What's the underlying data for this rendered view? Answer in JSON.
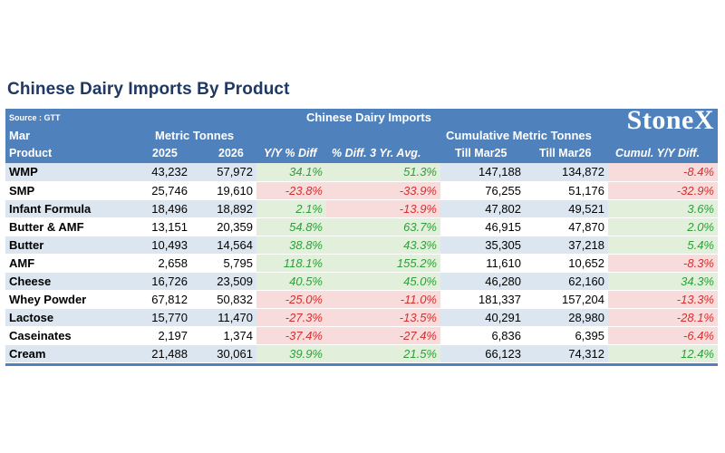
{
  "title": "Chinese Dairy Imports By Product",
  "header": {
    "source": "Source : GTT",
    "center_title": "Chinese Dairy Imports",
    "logo": "StoneX",
    "row2": {
      "period": "Mar",
      "metric": "Metric Tonnes",
      "cumulative": "Cumulative Metric Tonnes"
    },
    "columns": [
      "Product",
      "2025",
      "2026",
      "Y/Y % Diff",
      "% Diff. 3 Yr. Avg.",
      "Till Mar25",
      "Till Mar26",
      "Cumul. Y/Y Diff."
    ]
  },
  "colors": {
    "header_blue": "#4f81bd",
    "title_navy": "#1f3864",
    "positive_text": "#2e9e3a",
    "negative_text": "#d32f2f",
    "positive_fill": "#e2efda",
    "negative_fill": "#f8dcdc",
    "row_band": "#dce6f1"
  },
  "chart_data": {
    "type": "table",
    "title": "Chinese Dairy Imports By Product",
    "columns": [
      "Product",
      "2025",
      "2026",
      "Y/Y % Diff",
      "% Diff. 3 Yr. Avg.",
      "Till Mar25",
      "Till Mar26",
      "Cumul. Y/Y Diff."
    ],
    "rows": [
      {
        "product": "WMP",
        "y2025": "43,232",
        "y2026": "57,972",
        "yoy": "34.1%",
        "avg3": "51.3%",
        "till25": "147,188",
        "till26": "134,872",
        "cumul": "-8.4%"
      },
      {
        "product": "SMP",
        "y2025": "25,746",
        "y2026": "19,610",
        "yoy": "-23.8%",
        "avg3": "-33.9%",
        "till25": "76,255",
        "till26": "51,176",
        "cumul": "-32.9%"
      },
      {
        "product": "Infant Formula",
        "y2025": "18,496",
        "y2026": "18,892",
        "yoy": "2.1%",
        "avg3": "-13.9%",
        "till25": "47,802",
        "till26": "49,521",
        "cumul": "3.6%"
      },
      {
        "product": "Butter & AMF",
        "y2025": "13,151",
        "y2026": "20,359",
        "yoy": "54.8%",
        "avg3": "63.7%",
        "till25": "46,915",
        "till26": "47,870",
        "cumul": "2.0%"
      },
      {
        "product": "Butter",
        "y2025": "10,493",
        "y2026": "14,564",
        "yoy": "38.8%",
        "avg3": "43.3%",
        "till25": "35,305",
        "till26": "37,218",
        "cumul": "5.4%"
      },
      {
        "product": "AMF",
        "y2025": "2,658",
        "y2026": "5,795",
        "yoy": "118.1%",
        "avg3": "155.2%",
        "till25": "11,610",
        "till26": "10,652",
        "cumul": "-8.3%"
      },
      {
        "product": "Cheese",
        "y2025": "16,726",
        "y2026": "23,509",
        "yoy": "40.5%",
        "avg3": "45.0%",
        "till25": "46,280",
        "till26": "62,160",
        "cumul": "34.3%"
      },
      {
        "product": "Whey Powder",
        "y2025": "67,812",
        "y2026": "50,832",
        "yoy": "-25.0%",
        "avg3": "-11.0%",
        "till25": "181,337",
        "till26": "157,204",
        "cumul": "-13.3%"
      },
      {
        "product": "Lactose",
        "y2025": "15,770",
        "y2026": "11,470",
        "yoy": "-27.3%",
        "avg3": "-13.5%",
        "till25": "40,291",
        "till26": "28,980",
        "cumul": "-28.1%"
      },
      {
        "product": "Caseinates",
        "y2025": "2,197",
        "y2026": "1,374",
        "yoy": "-37.4%",
        "avg3": "-27.4%",
        "till25": "6,836",
        "till26": "6,395",
        "cumul": "-6.4%"
      },
      {
        "product": "Cream",
        "y2025": "21,488",
        "y2026": "30,061",
        "yoy": "39.9%",
        "avg3": "21.5%",
        "till25": "66,123",
        "till26": "74,312",
        "cumul": "12.4%"
      }
    ]
  }
}
